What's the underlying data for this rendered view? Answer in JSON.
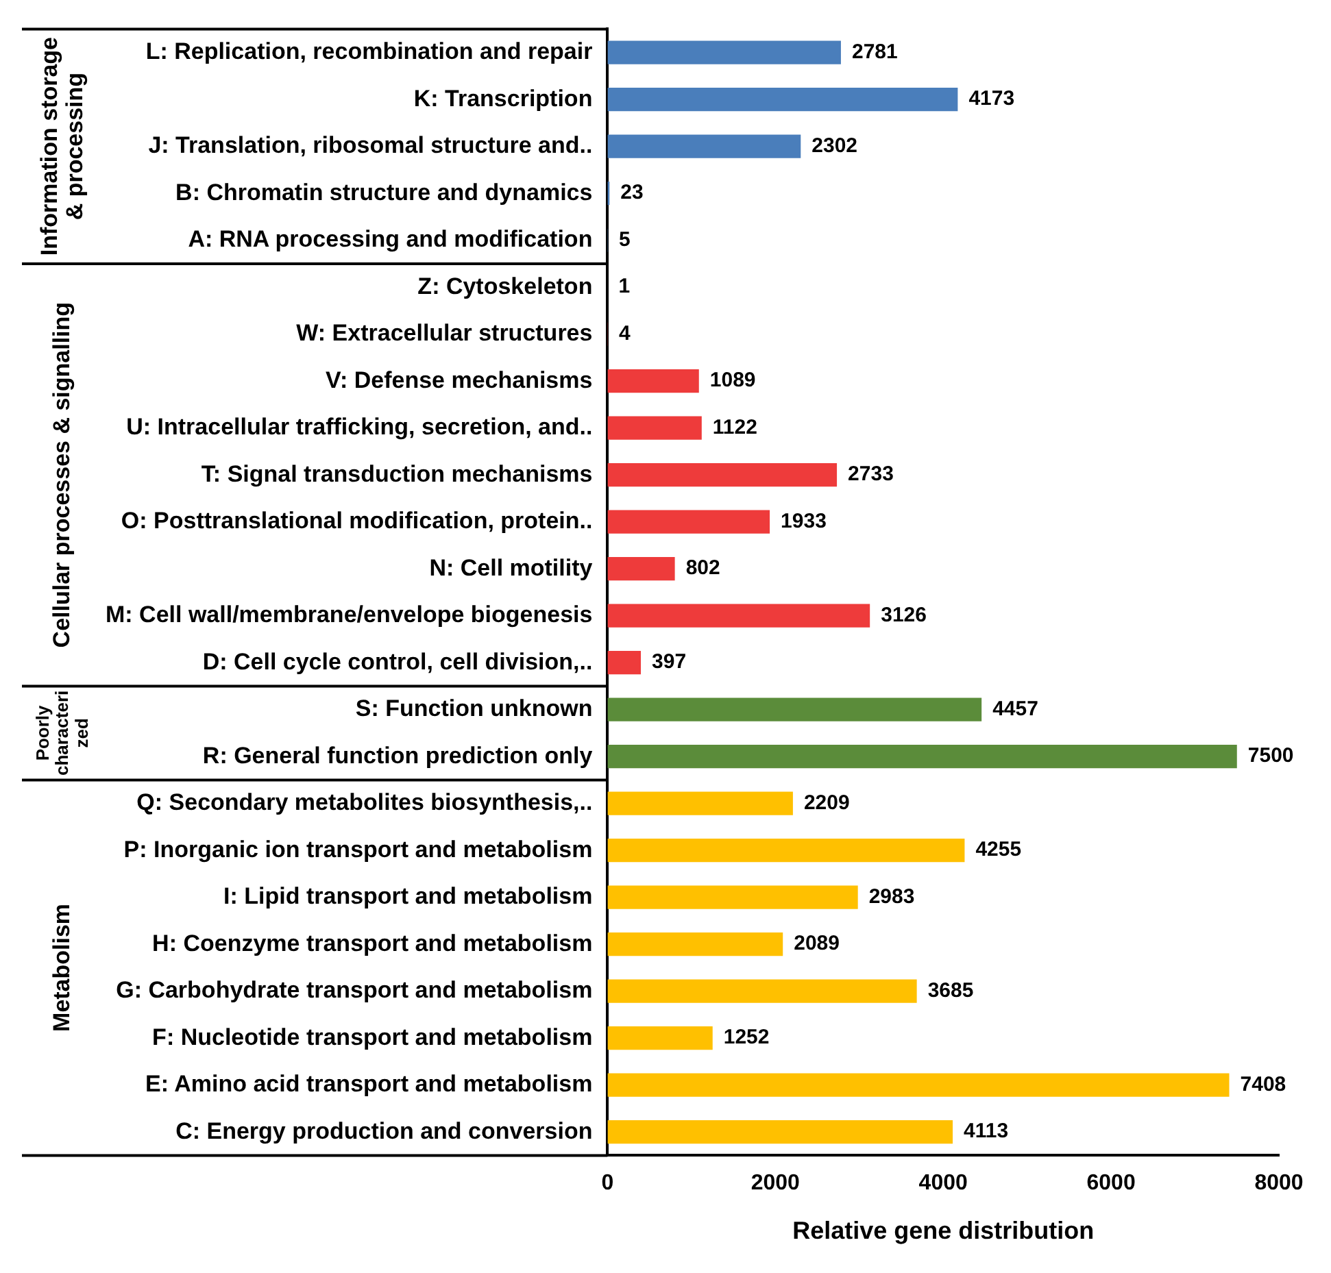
{
  "chart_data": {
    "type": "bar",
    "orientation": "horizontal",
    "xlabel": "Relative gene distribution",
    "categories": [
      "L: Replication, recombination and repair",
      "K: Transcription",
      "J: Translation, ribosomal structure and..",
      "B: Chromatin structure and dynamics",
      "A: RNA processing and modification",
      "Z: Cytoskeleton",
      "W: Extracellular structures",
      "V: Defense mechanisms",
      "U: Intracellular trafficking, secretion, and..",
      "T: Signal transduction mechanisms",
      "O: Posttranslational modification, protein..",
      "N: Cell motility",
      "M: Cell wall/membrane/envelope biogenesis",
      "D: Cell cycle control, cell division,..",
      "S: Function unknown",
      "R: General function prediction only",
      "Q: Secondary metabolites biosynthesis,..",
      "P: Inorganic ion transport and metabolism",
      "I: Lipid transport and metabolism",
      "H: Coenzyme transport and metabolism",
      "G: Carbohydrate transport and metabolism",
      "F: Nucleotide transport and metabolism",
      "E: Amino acid transport and metabolism",
      "C: Energy production and conversion"
    ],
    "values": [
      2781,
      4173,
      2302,
      23,
      5,
      1,
      4,
      1089,
      1122,
      2733,
      1933,
      802,
      3126,
      397,
      4457,
      7500,
      2209,
      4255,
      2983,
      2089,
      3685,
      1252,
      7408,
      4113
    ],
    "colors": [
      "#4a7ebb",
      "#4a7ebb",
      "#4a7ebb",
      "#4a7ebb",
      "#4a7ebb",
      "#ee3b3b",
      "#ee3b3b",
      "#ee3b3b",
      "#ee3b3b",
      "#ee3b3b",
      "#ee3b3b",
      "#ee3b3b",
      "#ee3b3b",
      "#ee3b3b",
      "#5b8c3a",
      "#5b8c3a",
      "#ffc000",
      "#ffc000",
      "#ffc000",
      "#ffc000",
      "#ffc000",
      "#ffc000",
      "#ffc000",
      "#ffc000"
    ],
    "xlim": [
      0,
      8000
    ],
    "xticks": [
      0,
      2000,
      4000,
      6000,
      8000
    ],
    "grid": false,
    "data_labels": true,
    "annotations": [
      "Information storage & processing",
      "Cellular processes & signalling",
      "Poorly characterized",
      "Metabolism"
    ]
  }
}
